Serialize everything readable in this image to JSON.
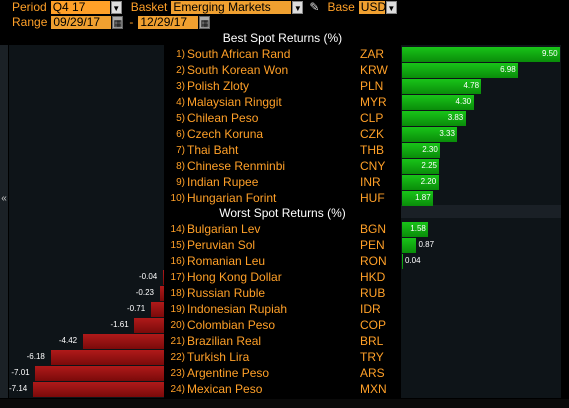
{
  "toolbar": {
    "period_label": "Period",
    "period_value": "Q4 17",
    "basket_label": "Basket",
    "basket_value": "Emerging Markets",
    "base_label": "Base",
    "base_value": "USD",
    "range_label": "Range",
    "range_start": "09/29/17",
    "range_sep": "-",
    "range_end": "12/29/17"
  },
  "best": {
    "header": "Best Spot Returns (%)",
    "items": [
      {
        "rank": "1)",
        "name": "South African Rand",
        "code": "ZAR",
        "value": 9.5,
        "label": "9.50"
      },
      {
        "rank": "2)",
        "name": "South Korean Won",
        "code": "KRW",
        "value": 6.98,
        "label": "6.98"
      },
      {
        "rank": "3)",
        "name": "Polish Zloty",
        "code": "PLN",
        "value": 4.78,
        "label": "4.78"
      },
      {
        "rank": "4)",
        "name": "Malaysian Ringgit",
        "code": "MYR",
        "value": 4.3,
        "label": "4.30"
      },
      {
        "rank": "5)",
        "name": "Chilean Peso",
        "code": "CLP",
        "value": 3.83,
        "label": "3.83"
      },
      {
        "rank": "6)",
        "name": "Czech Koruna",
        "code": "CZK",
        "value": 3.33,
        "label": "3.33"
      },
      {
        "rank": "7)",
        "name": "Thai Baht",
        "code": "THB",
        "value": 2.3,
        "label": "2.30"
      },
      {
        "rank": "8)",
        "name": "Chinese Renminbi",
        "code": "CNY",
        "value": 2.25,
        "label": "2.25"
      },
      {
        "rank": "9)",
        "name": "Indian Rupee",
        "code": "INR",
        "value": 2.2,
        "label": "2.20"
      },
      {
        "rank": "10)",
        "name": "Hungarian Forint",
        "code": "HUF",
        "value": 1.87,
        "label": "1.87"
      }
    ]
  },
  "worst": {
    "header": "Worst Spot Returns (%)",
    "items": [
      {
        "rank": "14)",
        "name": "Bulgarian Lev",
        "code": "BGN",
        "value": 1.58,
        "label": "1.58"
      },
      {
        "rank": "15)",
        "name": "Peruvian Sol",
        "code": "PEN",
        "value": 0.87,
        "label": "0.87"
      },
      {
        "rank": "16)",
        "name": "Romanian Leu",
        "code": "RON",
        "value": 0.04,
        "label": "0.04"
      },
      {
        "rank": "17)",
        "name": "Hong Kong Dollar",
        "code": "HKD",
        "value": -0.04,
        "label": "-0.04"
      },
      {
        "rank": "18)",
        "name": "Russian Ruble",
        "code": "RUB",
        "value": -0.23,
        "label": "-0.23"
      },
      {
        "rank": "19)",
        "name": "Indonesian Rupiah",
        "code": "IDR",
        "value": -0.71,
        "label": "-0.71"
      },
      {
        "rank": "20)",
        "name": "Colombian Peso",
        "code": "COP",
        "value": -1.61,
        "label": "-1.61"
      },
      {
        "rank": "21)",
        "name": "Brazilian Real",
        "code": "BRL",
        "value": -4.42,
        "label": "-4.42"
      },
      {
        "rank": "22)",
        "name": "Turkish Lira",
        "code": "TRY",
        "value": -6.18,
        "label": "-6.18"
      },
      {
        "rank": "23)",
        "name": "Argentine Peso",
        "code": "ARS",
        "value": -7.01,
        "label": "-7.01"
      },
      {
        "rank": "24)",
        "name": "Mexican Peso",
        "code": "MXN",
        "value": -7.14,
        "label": "-7.14"
      }
    ]
  },
  "icons": {
    "collapse": "«",
    "dropdown": "▼",
    "calendar": "▦",
    "pencil": "✎"
  },
  "colors": {
    "label": "#ffa028",
    "header": "#ffffff",
    "positive": "#19c419",
    "negative": "#b01a1a",
    "background": "#000000"
  }
}
